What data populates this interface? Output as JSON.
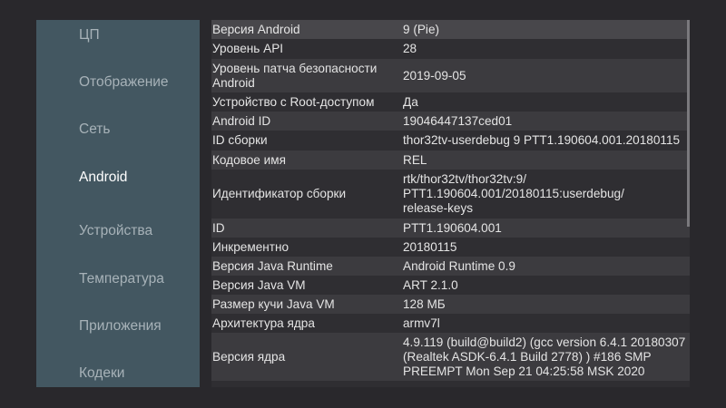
{
  "sidebar": {
    "items": [
      {
        "label": "ЦП",
        "selected": false
      },
      {
        "label": "Отображение",
        "selected": false
      },
      {
        "label": "Сеть",
        "selected": false
      },
      {
        "label": "Android",
        "selected": true
      },
      {
        "label": "Устройства",
        "selected": false
      },
      {
        "label": "Температура",
        "selected": false
      },
      {
        "label": "Приложения",
        "selected": false
      },
      {
        "label": "Кодеки",
        "selected": false
      }
    ]
  },
  "table": {
    "rows": [
      {
        "key": "Версия Android",
        "value": "9 (Pie)"
      },
      {
        "key": "Уровень API",
        "value": "28"
      },
      {
        "key": "Уровень патча безопасности Android",
        "value": "2019-09-05"
      },
      {
        "key": "Устройство с Root-доступом",
        "value": "Да"
      },
      {
        "key": "Android ID",
        "value": "19046447137ced01"
      },
      {
        "key": "ID сборки",
        "value": "thor32tv-userdebug 9 PTT1.190604.001.20180115"
      },
      {
        "key": "Кодовое имя",
        "value": "REL"
      },
      {
        "key": "Идентификатор сборки",
        "value": "rtk/thor32tv/thor32tv:9/ PTT1.190604.001/20180115:userdebug/ release-keys"
      },
      {
        "key": "ID",
        "value": "PTT1.190604.001"
      },
      {
        "key": "Инкрементно",
        "value": "20180115"
      },
      {
        "key": "Версия Java Runtime",
        "value": "Android Runtime 0.9"
      },
      {
        "key": "Версия Java VM",
        "value": "ART 2.1.0"
      },
      {
        "key": "Размер кучи Java VM",
        "value": "128 МБ"
      },
      {
        "key": "Архитектура ядра",
        "value": "armv7l"
      },
      {
        "key": "Версия ядра",
        "value": "4.9.119 (build@build2) (gcc version 6.4.1 20180307 (Realtek ASDK-6.4.1 Build 2778) ) #186 SMP PREEMPT Mon Sep 21 04:25:58 MSK 2020"
      }
    ]
  },
  "colors": {
    "background": "#29282c",
    "sidebar": "#435761",
    "selected_text": "#ffffff",
    "nav_text": "#a7b2b8"
  }
}
